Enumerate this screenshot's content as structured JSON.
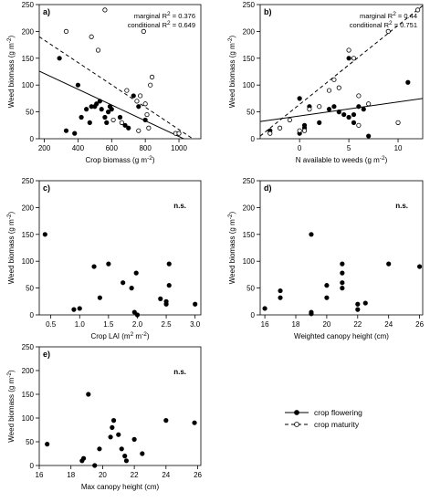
{
  "figure": {
    "legend": {
      "entries": [
        {
          "label": "crop flowering",
          "line": "solid",
          "marker": "filled-circle"
        },
        {
          "label": "crop maturity",
          "line": "dashed",
          "marker": "open-circle"
        }
      ]
    }
  },
  "chart_data": [
    {
      "type": "scatter",
      "panel_label": "a)",
      "xlabel": "Crop biomass (g m",
      "xlabel_sup": "-2",
      "xlabel_tail": ")",
      "ylabel": "Weed biomass (g m",
      "ylabel_sup": "-2",
      "ylabel_tail": ")",
      "xlim": [
        170,
        1130
      ],
      "ylim": [
        0,
        250
      ],
      "xticks": [
        200,
        400,
        600,
        800,
        1000
      ],
      "yticks": [
        0,
        50,
        100,
        150,
        200,
        250
      ],
      "annotations": [
        {
          "prefix": "marginal R",
          "sup": "2",
          "suffix": " = 0.376"
        },
        {
          "prefix": "conditional R",
          "sup": "2",
          "suffix": " = 0.649"
        }
      ],
      "series": [
        {
          "name": "crop flowering",
          "marker": "filled",
          "points": [
            [
              290,
              150
            ],
            [
              330,
              15
            ],
            [
              380,
              10
            ],
            [
              400,
              100
            ],
            [
              420,
              40
            ],
            [
              450,
              55
            ],
            [
              470,
              30
            ],
            [
              480,
              60
            ],
            [
              500,
              60
            ],
            [
              510,
              65
            ],
            [
              530,
              70
            ],
            [
              540,
              55
            ],
            [
              560,
              40
            ],
            [
              570,
              30
            ],
            [
              580,
              50
            ],
            [
              590,
              60
            ],
            [
              600,
              55
            ],
            [
              650,
              40
            ],
            [
              680,
              25
            ],
            [
              700,
              20
            ],
            [
              730,
              80
            ],
            [
              760,
              60
            ],
            [
              800,
              35
            ]
          ],
          "fit": {
            "x": [
              170,
              1130
            ],
            "y": [
              126,
              -15
            ],
            "dash": false
          }
        },
        {
          "name": "crop maturity",
          "marker": "open",
          "points": [
            [
              330,
              200
            ],
            [
              480,
              190
            ],
            [
              520,
              165
            ],
            [
              560,
              240
            ],
            [
              610,
              35
            ],
            [
              660,
              30
            ],
            [
              690,
              90
            ],
            [
              750,
              70
            ],
            [
              760,
              15
            ],
            [
              770,
              80
            ],
            [
              790,
              200
            ],
            [
              800,
              65
            ],
            [
              810,
              45
            ],
            [
              820,
              20
            ],
            [
              830,
              100
            ],
            [
              840,
              115
            ],
            [
              980,
              10
            ],
            [
              1000,
              10
            ]
          ],
          "fit": {
            "x": [
              170,
              1130
            ],
            "y": [
              190,
              -10
            ],
            "dash": true
          }
        }
      ]
    },
    {
      "type": "scatter",
      "panel_label": "b)",
      "xlabel": "N available to weeds (g m",
      "xlabel_sup": "-2",
      "xlabel_tail": ")",
      "ylabel": "Weed biomass (g m",
      "ylabel_sup": "-2",
      "ylabel_tail": ")",
      "xlim": [
        -4,
        12.5
      ],
      "ylim": [
        0,
        250
      ],
      "xticks": [
        0,
        5,
        10
      ],
      "yticks": [
        0,
        50,
        100,
        150,
        200,
        250
      ],
      "annotations": [
        {
          "prefix": "marginal R",
          "sup": "2",
          "suffix": " = 0.44"
        },
        {
          "prefix": "conditional R",
          "sup": "2",
          "suffix": " = 0.751"
        }
      ],
      "series": [
        {
          "name": "crop flowering",
          "marker": "filled",
          "points": [
            [
              -3,
              15
            ],
            [
              0,
              75
            ],
            [
              0,
              10
            ],
            [
              0.5,
              20
            ],
            [
              0.5,
              25
            ],
            [
              1,
              60
            ],
            [
              2,
              30
            ],
            [
              3,
              55
            ],
            [
              3.5,
              60
            ],
            [
              4,
              50
            ],
            [
              4.5,
              45
            ],
            [
              5,
              150
            ],
            [
              5,
              40
            ],
            [
              5.5,
              30
            ],
            [
              5.5,
              45
            ],
            [
              6,
              60
            ],
            [
              6.5,
              55
            ],
            [
              7,
              5
            ],
            [
              11,
              105
            ]
          ],
          "fit": {
            "x": [
              -4,
              12.5
            ],
            "y": [
              32,
              75
            ],
            "dash": false
          }
        },
        {
          "name": "crop maturity",
          "marker": "open",
          "points": [
            [
              -3,
              10
            ],
            [
              -2,
              20
            ],
            [
              -1,
              35
            ],
            [
              0,
              15
            ],
            [
              0.5,
              15
            ],
            [
              1,
              55
            ],
            [
              2,
              60
            ],
            [
              3,
              90
            ],
            [
              3.5,
              110
            ],
            [
              4,
              95
            ],
            [
              5,
              165
            ],
            [
              5.5,
              150
            ],
            [
              6,
              25
            ],
            [
              6,
              80
            ],
            [
              7,
              65
            ],
            [
              9,
              200
            ],
            [
              10,
              30
            ],
            [
              12,
              240
            ]
          ],
          "fit": {
            "x": [
              -4,
              12.5
            ],
            "y": [
              5,
              248
            ],
            "dash": true
          }
        }
      ]
    },
    {
      "type": "scatter",
      "panel_label": "c)",
      "xlabel": "Crop LAI (m",
      "xlabel_sup": "2",
      "xlabel_tail": " m",
      "xlabel_sup2": "-2",
      "xlabel_tail2": ")",
      "ylabel": "Weed biomass (g m",
      "ylabel_sup": "-2",
      "ylabel_tail": ")",
      "xlim": [
        0.3,
        3.1
      ],
      "ylim": [
        0,
        250
      ],
      "xticks": [
        0.5,
        1.0,
        1.5,
        2.0,
        2.5,
        3.0
      ],
      "yticks": [
        0,
        50,
        100,
        150,
        200,
        250
      ],
      "ns": "n.s.",
      "series": [
        {
          "name": "crop flowering",
          "marker": "filled",
          "points": [
            [
              0.4,
              150
            ],
            [
              0.9,
              10
            ],
            [
              1.0,
              12
            ],
            [
              1.25,
              90
            ],
            [
              1.35,
              32
            ],
            [
              1.5,
              95
            ],
            [
              1.75,
              60
            ],
            [
              1.9,
              50
            ],
            [
              1.95,
              5
            ],
            [
              2.0,
              0
            ],
            [
              1.98,
              78
            ],
            [
              2.4,
              30
            ],
            [
              2.5,
              25
            ],
            [
              2.5,
              20
            ],
            [
              2.55,
              95
            ],
            [
              2.55,
              55
            ],
            [
              3.0,
              20
            ]
          ]
        }
      ]
    },
    {
      "type": "scatter",
      "panel_label": "d)",
      "xlabel": "Weighted canopy height (cm)",
      "ylabel": "Weed biomass (g m",
      "ylabel_sup": "-2",
      "ylabel_tail": ")",
      "xlim": [
        15.7,
        26.2
      ],
      "ylim": [
        0,
        250
      ],
      "xticks": [
        16,
        18,
        20,
        22,
        24,
        26
      ],
      "yticks": [
        0,
        50,
        100,
        150,
        200,
        250
      ],
      "ns": "n.s.",
      "series": [
        {
          "name": "crop flowering",
          "marker": "filled",
          "points": [
            [
              16,
              12
            ],
            [
              17,
              45
            ],
            [
              17,
              32
            ],
            [
              19,
              150
            ],
            [
              19,
              5
            ],
            [
              19,
              2
            ],
            [
              20,
              55
            ],
            [
              20,
              32
            ],
            [
              21,
              95
            ],
            [
              21,
              78
            ],
            [
              21,
              60
            ],
            [
              21,
              50
            ],
            [
              22,
              20
            ],
            [
              22,
              10
            ],
            [
              22.5,
              22
            ],
            [
              24,
              95
            ],
            [
              26,
              90
            ]
          ]
        }
      ]
    },
    {
      "type": "scatter",
      "panel_label": "e)",
      "xlabel": "Max canopy height (cm)",
      "ylabel": "Weed biomass (g m",
      "ylabel_sup": "-2",
      "ylabel_tail": ")",
      "xlim": [
        16,
        26.2
      ],
      "ylim": [
        0,
        250
      ],
      "xticks": [
        16,
        18,
        20,
        22,
        24,
        26
      ],
      "yticks": [
        0,
        50,
        100,
        150,
        200,
        250
      ],
      "ns": "n.s.",
      "series": [
        {
          "name": "crop flowering",
          "marker": "filled",
          "points": [
            [
              16.5,
              45
            ],
            [
              18.7,
              10
            ],
            [
              18.8,
              15
            ],
            [
              19.1,
              150
            ],
            [
              19.5,
              0
            ],
            [
              19.8,
              35
            ],
            [
              20.5,
              60
            ],
            [
              20.6,
              80
            ],
            [
              20.7,
              95
            ],
            [
              21.0,
              65
            ],
            [
              21.2,
              35
            ],
            [
              21.4,
              20
            ],
            [
              21.5,
              10
            ],
            [
              22.0,
              55
            ],
            [
              22.5,
              25
            ],
            [
              24.0,
              95
            ],
            [
              25.8,
              90
            ]
          ]
        }
      ]
    }
  ]
}
